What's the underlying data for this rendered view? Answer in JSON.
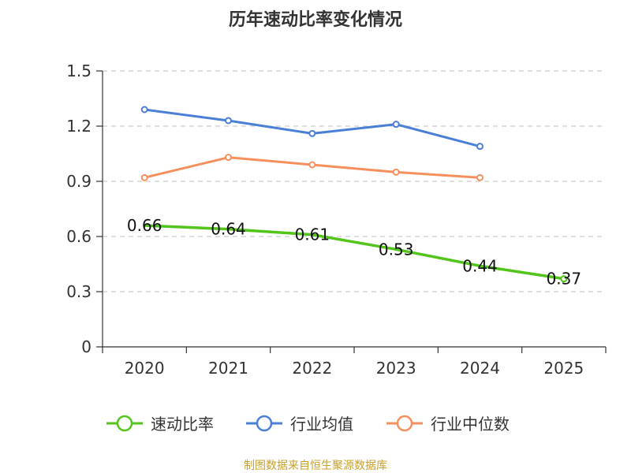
{
  "chart_data": {
    "type": "line",
    "title": "历年速动比率变化情况",
    "categories": [
      "2020",
      "2021",
      "2022",
      "2023",
      "2024",
      "2025"
    ],
    "ylim": [
      0,
      1.5
    ],
    "yticks": [
      "0",
      "0.3",
      "0.6",
      "0.9",
      "1.2",
      "1.5"
    ],
    "grid": true,
    "legend_position": "bottom",
    "series": [
      {
        "name": "速动比率",
        "color": "#52c41a",
        "values": [
          0.66,
          0.64,
          0.61,
          0.53,
          0.44,
          0.37
        ],
        "labels": [
          "0.66",
          "0.64",
          "0.61",
          "0.53",
          "0.44",
          "0.37"
        ]
      },
      {
        "name": "行业均值",
        "color": "#4a7fd8",
        "values": [
          1.29,
          1.23,
          1.16,
          1.21,
          1.09,
          null
        ]
      },
      {
        "name": "行业中位数",
        "color": "#f5905c",
        "values": [
          0.92,
          1.03,
          0.99,
          0.95,
          0.92,
          null
        ]
      }
    ],
    "source": "制图数据来自恒生聚源数据库"
  }
}
